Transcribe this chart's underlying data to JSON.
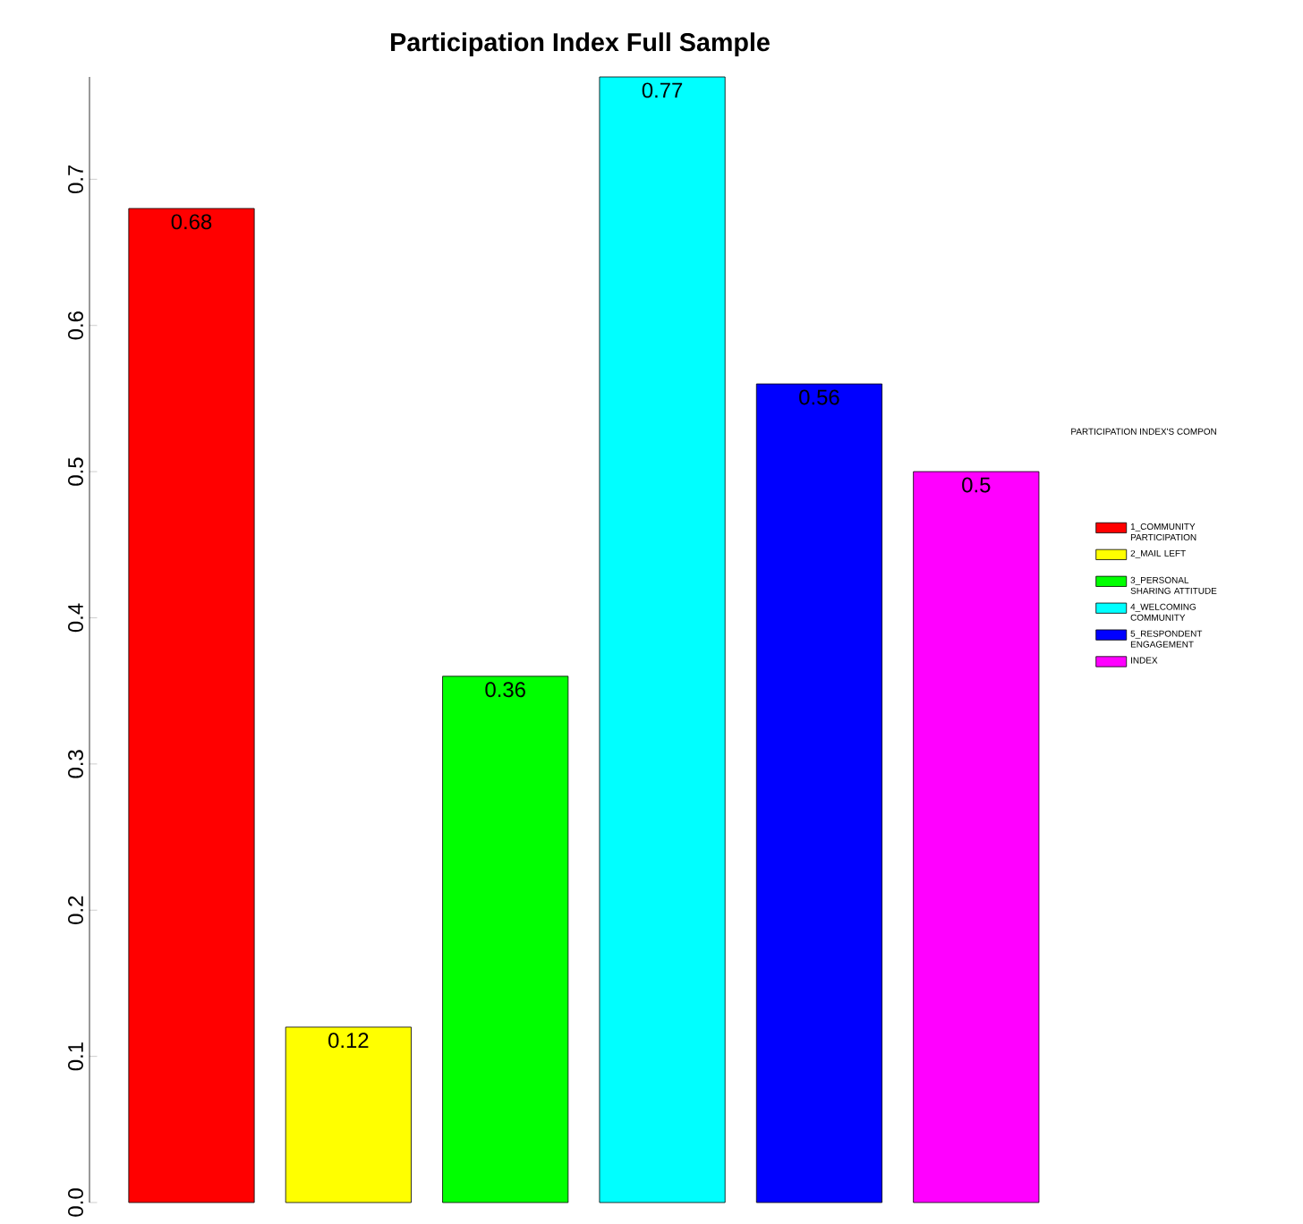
{
  "chart_data": {
    "type": "bar",
    "title": "Participation Index Full Sample",
    "legend_title": "PARTICIPATION INDEX'S COMPON",
    "categories": [
      null
    ],
    "series": [
      {
        "name": "1_COMMUNITY PARTICIPATION",
        "color": "#ff0000",
        "values": [
          0.68
        ]
      },
      {
        "name": "2_MAIL LEFT",
        "color": "#ffff00",
        "values": [
          0.12
        ]
      },
      {
        "name": "3_PERSONAL SHARING ATTITUDE",
        "color": "#00ff00",
        "values": [
          0.36
        ]
      },
      {
        "name": "4_WELCOMING COMMUNITY",
        "color": "#00ffff",
        "values": [
          0.77
        ]
      },
      {
        "name": "5_RESPONDENT ENGAGEMENT",
        "color": "#0000ff",
        "values": [
          0.56
        ]
      },
      {
        "name": "INDEX",
        "color": "#ff00ff",
        "values": [
          0.5
        ]
      }
    ],
    "ylim": [
      0,
      0.77
    ],
    "yticks": [
      {
        "value": 0,
        "label": "0.0"
      },
      {
        "value": 0.1,
        "label": "0.1"
      },
      {
        "value": 0.2,
        "label": "0.2"
      },
      {
        "value": 0.3,
        "label": "0.3"
      },
      {
        "value": 0.4,
        "label": "0.4"
      },
      {
        "value": 0.5,
        "label": "0.5"
      },
      {
        "value": 0.6,
        "label": "0.6"
      },
      {
        "value": 0.7,
        "label": "0.7"
      }
    ],
    "data_labels": true,
    "legend": "right",
    "grid": false,
    "tick_labels": "y"
  }
}
